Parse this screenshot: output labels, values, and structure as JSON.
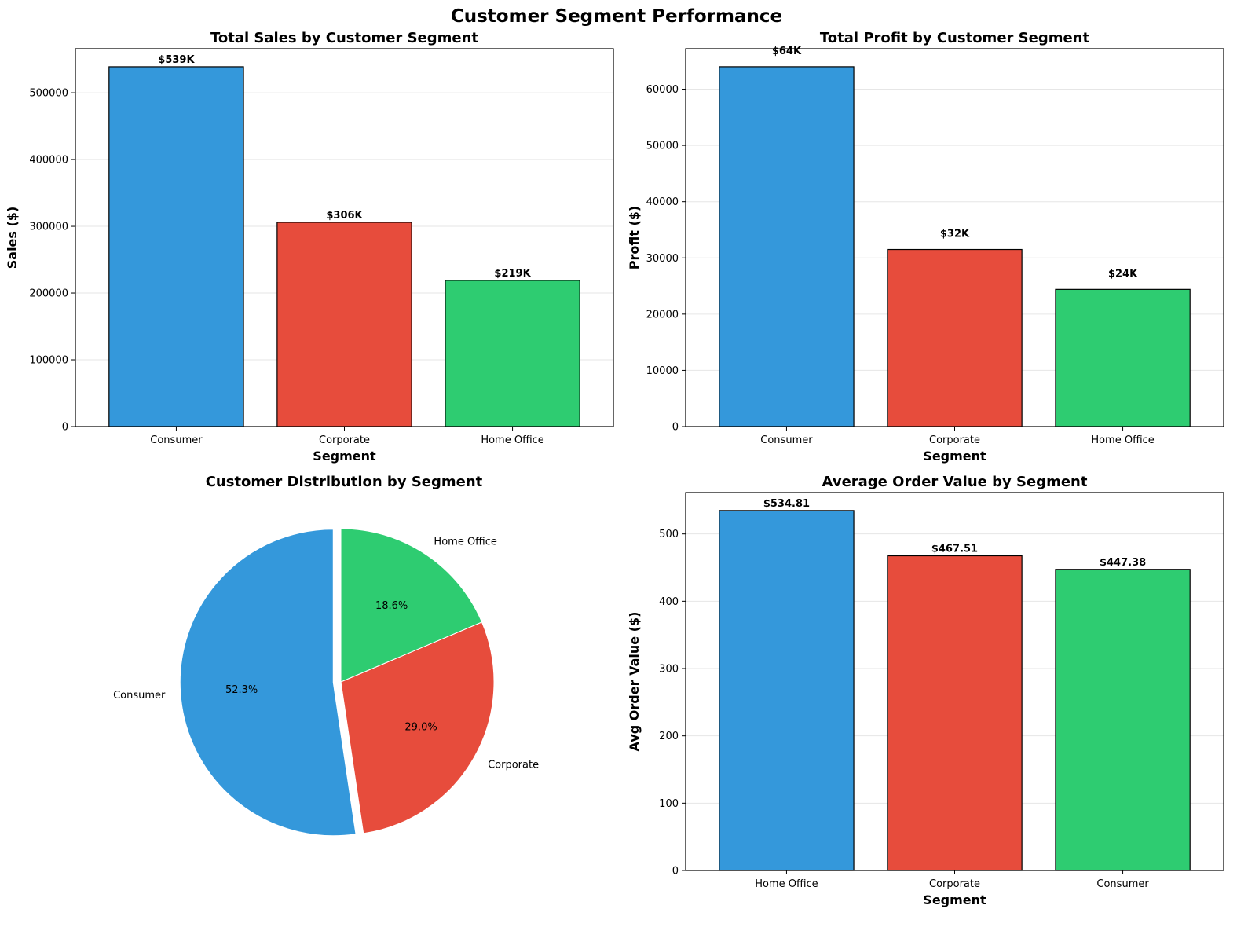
{
  "figure": {
    "title": "Customer Segment Performance"
  },
  "colors": {
    "blue": "#3498db",
    "red": "#e74c3c",
    "green": "#2ecc71"
  },
  "chart_data": [
    {
      "type": "bar",
      "title": "Total Sales by Customer Segment",
      "xlabel": "Segment",
      "ylabel": "Sales ($)",
      "categories": [
        "Consumer",
        "Corporate",
        "Home Office"
      ],
      "values": [
        539000,
        306000,
        219000
      ],
      "data_labels": [
        "$539K",
        "$306K",
        "$219K"
      ],
      "ylim": [
        0,
        566000
      ],
      "yticks": [
        0,
        100000,
        200000,
        300000,
        400000,
        500000
      ],
      "ytick_labels": [
        "0",
        "100000",
        "200000",
        "300000",
        "400000",
        "500000"
      ],
      "grid": "y"
    },
    {
      "type": "bar",
      "title": "Total Profit by Customer Segment",
      "xlabel": "Segment",
      "ylabel": "Profit ($)",
      "categories": [
        "Consumer",
        "Corporate",
        "Home Office"
      ],
      "values": [
        64000,
        31500,
        24400
      ],
      "data_labels": [
        "$64K",
        "$32K",
        "$24K"
      ],
      "ylim": [
        0,
        67200
      ],
      "yticks": [
        0,
        10000,
        20000,
        30000,
        40000,
        50000,
        60000
      ],
      "ytick_labels": [
        "0",
        "10000",
        "20000",
        "30000",
        "40000",
        "50000",
        "60000"
      ],
      "grid": "y"
    },
    {
      "type": "pie",
      "title": "Customer Distribution by Segment",
      "labels": [
        "Consumer",
        "Corporate",
        "Home Office"
      ],
      "values": [
        52.3,
        29.0,
        18.6
      ],
      "pct_labels": [
        "52.3%",
        "29.0%",
        "18.6%"
      ],
      "explode": [
        0.05,
        0,
        0
      ],
      "start_angle": 90
    },
    {
      "type": "bar",
      "title": "Average Order Value by Segment",
      "xlabel": "Segment",
      "ylabel": "Avg Order Value ($)",
      "categories": [
        "Home Office",
        "Corporate",
        "Consumer"
      ],
      "values": [
        534.81,
        467.51,
        447.38
      ],
      "data_labels": [
        "$534.81",
        "$467.51",
        "$447.38"
      ],
      "ylim": [
        0,
        561.5
      ],
      "yticks": [
        0,
        100,
        200,
        300,
        400,
        500
      ],
      "ytick_labels": [
        "0",
        "100",
        "200",
        "300",
        "400",
        "500"
      ],
      "grid": "y"
    }
  ]
}
